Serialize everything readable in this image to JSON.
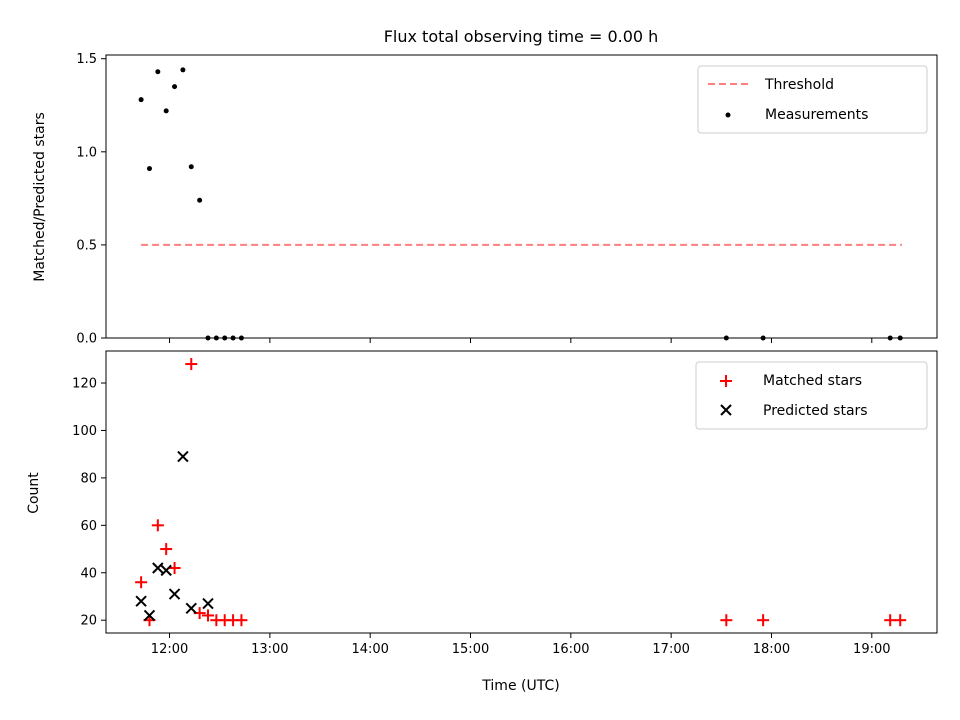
{
  "chart_data": [
    {
      "type": "scatter",
      "title": "Flux total observing time = 0.00 h",
      "xlabel": "",
      "ylabel": "Matched/Predicted stars",
      "ylim": [
        0,
        1.52
      ],
      "yticks": [
        0.0,
        0.5,
        1.0,
        1.5
      ],
      "ytick_labels": [
        "0.0",
        "0.5",
        "1.0",
        "1.5"
      ],
      "xlim": [
        "11:22",
        "19:39"
      ],
      "xticks": [
        "12:00",
        "13:00",
        "14:00",
        "15:00",
        "16:00",
        "17:00",
        "18:00",
        "19:00"
      ],
      "grid": false,
      "legend": "upper-right",
      "series": [
        {
          "name": "Threshold",
          "style": "dashed-line",
          "color": "#ff7f7f",
          "x": [
            "11:43",
            "19:18"
          ],
          "y": [
            0.5,
            0.5
          ]
        },
        {
          "name": "Measurements",
          "style": "dot",
          "color": "#000000",
          "x": [
            "11:43",
            "11:48",
            "11:53",
            "11:58",
            "12:03",
            "12:08",
            "12:13",
            "12:18",
            "12:23",
            "12:28",
            "12:33",
            "12:38",
            "12:43",
            "17:33",
            "17:55",
            "19:11",
            "19:17"
          ],
          "y": [
            1.28,
            0.91,
            1.43,
            1.22,
            1.35,
            1.44,
            0.92,
            0.74,
            0.0,
            0.0,
            0.0,
            0.0,
            0.0,
            0.0,
            0.0,
            0.0,
            0.0
          ]
        }
      ]
    },
    {
      "type": "scatter",
      "title": "",
      "xlabel": "Time (UTC)",
      "ylabel": "Count",
      "ylim": [
        14.6,
        133.5
      ],
      "yticks": [
        20,
        40,
        60,
        80,
        100,
        120
      ],
      "ytick_labels": [
        "20",
        "40",
        "60",
        "80",
        "100",
        "120"
      ],
      "xlim": [
        "11:22",
        "19:39"
      ],
      "xticks": [
        "12:00",
        "13:00",
        "14:00",
        "15:00",
        "16:00",
        "17:00",
        "18:00",
        "19:00"
      ],
      "grid": false,
      "legend": "upper-right",
      "series": [
        {
          "name": "Matched stars",
          "style": "plus",
          "color": "#ff0000",
          "x": [
            "11:43",
            "11:48",
            "11:53",
            "11:58",
            "12:03",
            "12:13",
            "12:18",
            "12:23",
            "12:28",
            "12:33",
            "12:38",
            "12:43",
            "17:33",
            "17:55",
            "19:11",
            "19:17"
          ],
          "y": [
            36,
            20,
            60,
            50,
            42,
            128,
            23,
            22,
            20,
            20,
            20,
            20,
            20,
            20,
            20,
            20
          ]
        },
        {
          "name": "Predicted stars",
          "style": "x",
          "color": "#000000",
          "x": [
            "11:43",
            "11:48",
            "11:53",
            "11:58",
            "12:03",
            "12:08",
            "12:13",
            "12:23"
          ],
          "y": [
            28,
            22,
            42,
            41,
            31,
            89,
            25,
            27
          ]
        }
      ]
    }
  ]
}
